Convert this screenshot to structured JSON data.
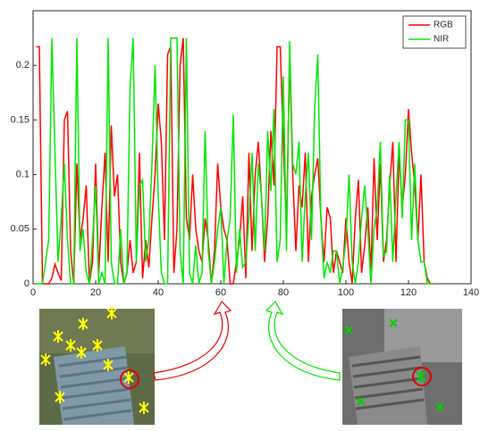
{
  "chart_data": {
    "type": "line",
    "x": [
      1,
      2,
      3,
      4,
      5,
      6,
      7,
      8,
      9,
      10,
      11,
      12,
      13,
      14,
      15,
      16,
      17,
      18,
      19,
      20,
      21,
      22,
      23,
      24,
      25,
      26,
      27,
      28,
      29,
      30,
      31,
      32,
      33,
      34,
      35,
      36,
      37,
      38,
      39,
      40,
      41,
      42,
      43,
      44,
      45,
      46,
      47,
      48,
      49,
      50,
      51,
      52,
      53,
      54,
      55,
      56,
      57,
      58,
      59,
      60,
      61,
      62,
      63,
      64,
      65,
      66,
      67,
      68,
      69,
      70,
      71,
      72,
      73,
      74,
      75,
      76,
      77,
      78,
      79,
      80,
      81,
      82,
      83,
      84,
      85,
      86,
      87,
      88,
      89,
      90,
      91,
      92,
      93,
      94,
      95,
      96,
      97,
      98,
      99,
      100,
      101,
      102,
      103,
      104,
      105,
      106,
      107,
      108,
      109,
      110,
      111,
      112,
      113,
      114,
      115,
      116,
      117,
      118,
      119,
      120,
      121,
      122,
      123,
      124,
      125,
      126,
      127,
      128
    ],
    "series": [
      {
        "name": "RGB",
        "color": "#ff0000",
        "values": [
          0.217,
          0.217,
          0,
          0,
          0,
          0.005,
          0.018,
          0.01,
          0.003,
          0.15,
          0.158,
          0.03,
          0,
          0.11,
          0.04,
          0.06,
          0.09,
          0,
          0.02,
          0.11,
          0.01,
          0.07,
          0.12,
          0.02,
          0.145,
          0.08,
          0.1,
          0.02,
          0,
          0.01,
          0.04,
          0.01,
          0.02,
          0.12,
          0.005,
          0.04,
          0.015,
          0.06,
          0.1,
          0.165,
          0.13,
          0.04,
          0.21,
          0.217,
          0.01,
          0.05,
          0.2,
          0.225,
          0.06,
          0.04,
          0.1,
          0.05,
          0.03,
          0.02,
          0.06,
          0.04,
          0,
          0.03,
          0.11,
          0.07,
          0.05,
          0.04,
          0,
          0,
          0.02,
          0.04,
          0.08,
          0.005,
          0.12,
          0.03,
          0.1,
          0.13,
          0.08,
          0.02,
          0.06,
          0.14,
          0.09,
          0.217,
          0.217,
          0.13,
          0.05,
          0.21,
          0.1,
          0.03,
          0.09,
          0.07,
          0.12,
          0.02,
          0.08,
          0.1,
          0.115,
          0.06,
          0.02,
          0.07,
          0.06,
          0.01,
          0.03,
          0.02,
          0.01,
          0.06,
          0.02,
          0,
          0.06,
          0.095,
          0.01,
          0.035,
          0.07,
          0.01,
          0.115,
          0.04,
          0.11,
          0.02,
          0.04,
          0.09,
          0.13,
          0.02,
          0.12,
          0.07,
          0.1,
          0.16,
          0.12,
          0.09,
          0.04,
          0.1,
          0.02,
          0.005,
          0,
          0
        ]
      },
      {
        "name": "NIR",
        "color": "#00e600",
        "values": [
          0,
          0,
          0,
          0.02,
          0.04,
          0.225,
          0.12,
          0.02,
          0.06,
          0.11,
          0.04,
          0,
          0,
          0.225,
          0.03,
          0.05,
          0.01,
          0,
          0.04,
          0.09,
          0,
          0.01,
          0,
          0.225,
          0.02,
          0,
          0,
          0.05,
          0,
          0.01,
          0.18,
          0.225,
          0.02,
          0.09,
          0.095,
          0.02,
          0.04,
          0.11,
          0.2,
          0.08,
          0.01,
          0,
          0,
          0.225,
          0.225,
          0.225,
          0.03,
          0,
          0.225,
          0.01,
          0,
          0.035,
          0,
          0.01,
          0.14,
          0.03,
          0,
          0.02,
          0.05,
          0.07,
          0,
          0.04,
          0.06,
          0.155,
          0.01,
          0.05,
          0.015,
          0.02,
          0.06,
          0.12,
          0.03,
          0.11,
          0.08,
          0.03,
          0.14,
          0.085,
          0.16,
          0.02,
          0.04,
          0.19,
          0.03,
          0.222,
          0.11,
          0.1,
          0.13,
          0.02,
          0.08,
          0.12,
          0.04,
          0.16,
          0.21,
          0.06,
          0.005,
          0.02,
          0.01,
          0.03,
          0.03,
          0,
          0.015,
          0.04,
          0.1,
          0.02,
          0,
          0.02,
          0.06,
          0.09,
          0.05,
          0,
          0.05,
          0.07,
          0.13,
          0.025,
          0.03,
          0.1,
          0.02,
          0.08,
          0.13,
          0.06,
          0.15,
          0.15,
          0.04,
          0.11,
          0.04,
          0.02,
          0.02,
          0,
          0,
          0
        ]
      }
    ],
    "xlim": [
      0,
      140
    ],
    "xticks": [
      0,
      20,
      40,
      60,
      80,
      100,
      120,
      140
    ],
    "ylim": [
      0,
      0.25
    ],
    "yticks": [
      0,
      0.05,
      0.1,
      0.15,
      0.2
    ],
    "legend": "upper right"
  }
}
